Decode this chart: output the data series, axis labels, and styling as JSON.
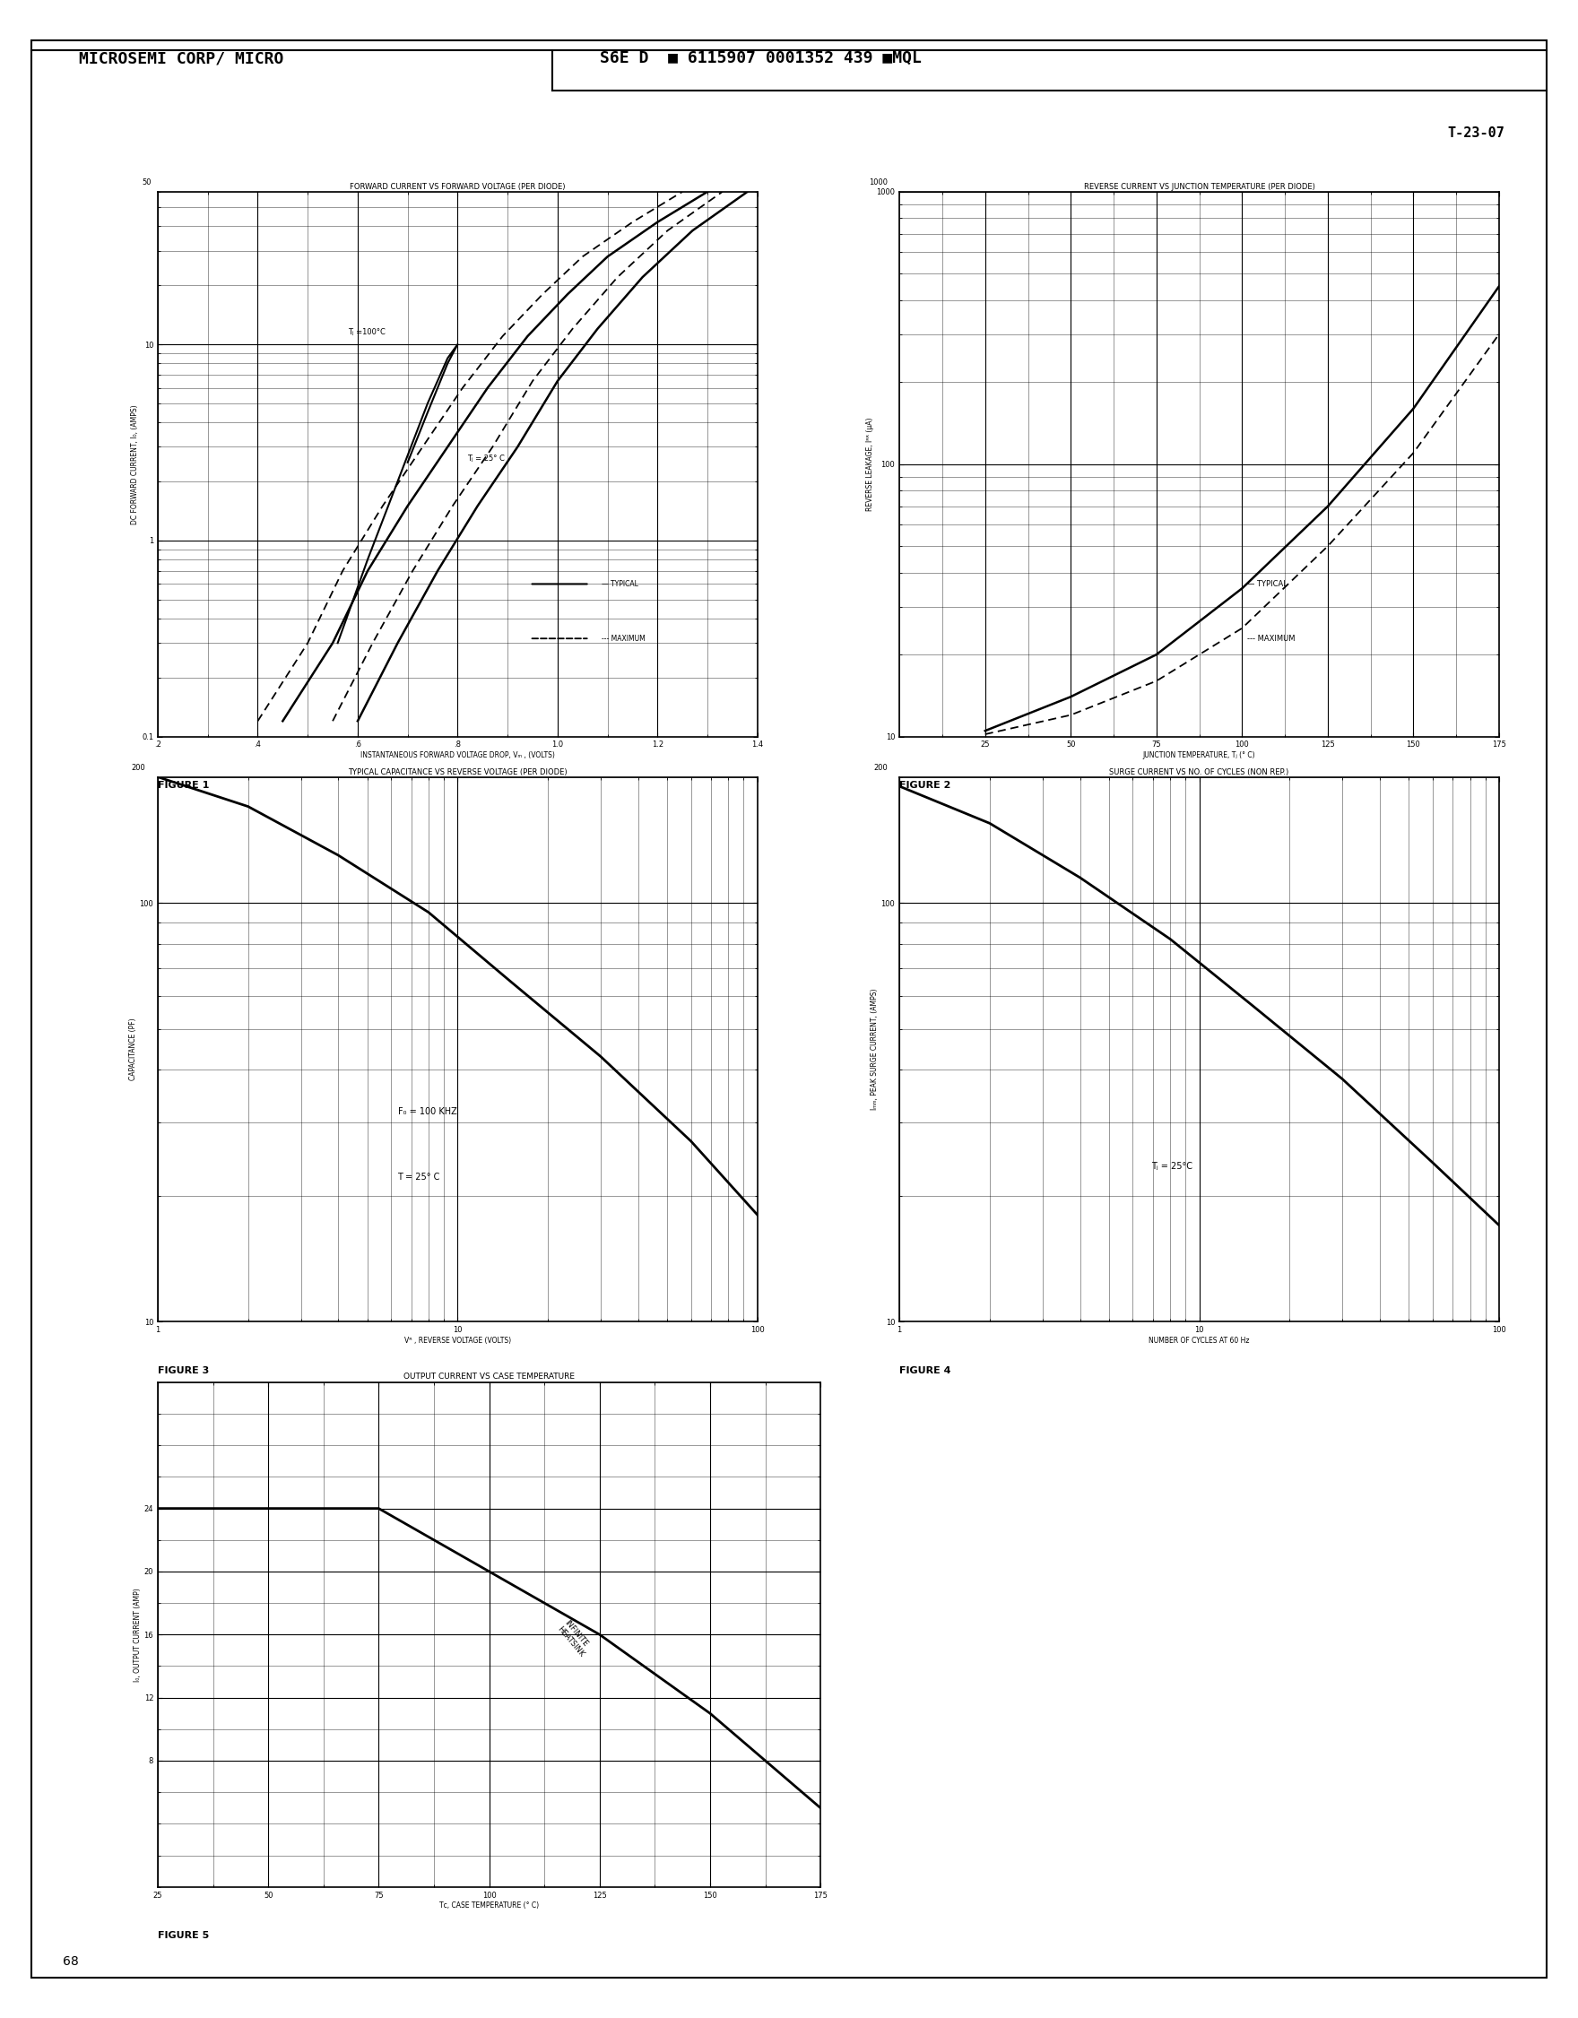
{
  "page_bg": "#ffffff",
  "header_left": "MICROSEMI CORP/ MICRO",
  "header_right": "S6E D  ■ 6115907 0001352 439 ■MQL",
  "corner_label": "T-23-07",
  "page_number": "68",
  "fig1": {
    "title": "FORWARD CURRENT VS FORWARD VOLTAGE (PER DIODE)",
    "xlabel": "INSTANTANEOUS FORWARD VOLTAGE DROP, Vₘ , (VOLTS)",
    "ylabel": "DC FORWARD CURRENT, I₀, (AMPS)",
    "xlim": [
      0.2,
      1.4
    ],
    "ylim_log": [
      0.1,
      60
    ],
    "xtick_vals": [
      0.2,
      0.4,
      0.6,
      0.8,
      1.0,
      1.2,
      1.4
    ],
    "xtick_labs": [
      ".2",
      ".4",
      ".6",
      ".8",
      "1.0",
      "1.2",
      "1.4"
    ],
    "ytick_vals": [
      0.1,
      1,
      10
    ],
    "ytick_labs": [
      "0.1",
      "1",
      "10"
    ],
    "top_label": "50",
    "label_100": "Tⱼ =100°C",
    "label_25": "Tⱼ = 25° C",
    "typical_100_x": [
      0.45,
      0.55,
      0.62,
      0.7,
      0.78,
      0.86,
      0.94,
      1.02,
      1.1,
      1.2,
      1.3
    ],
    "typical_100_y": [
      0.12,
      0.3,
      0.7,
      1.5,
      3.0,
      6.0,
      11.0,
      18.0,
      28.0,
      42.0,
      60.0
    ],
    "typical_25_x": [
      0.6,
      0.68,
      0.76,
      0.84,
      0.92,
      1.0,
      1.08,
      1.17,
      1.27,
      1.38
    ],
    "typical_25_y": [
      0.12,
      0.3,
      0.7,
      1.5,
      3.0,
      6.5,
      12.0,
      22.0,
      38.0,
      60.0
    ],
    "max_100_x": [
      0.4,
      0.5,
      0.57,
      0.65,
      0.73,
      0.81,
      0.89,
      0.97,
      1.05,
      1.15,
      1.25
    ],
    "max_100_y": [
      0.12,
      0.3,
      0.7,
      1.5,
      3.0,
      6.0,
      11.0,
      18.0,
      28.0,
      42.0,
      60.0
    ],
    "max_25_x": [
      0.55,
      0.63,
      0.71,
      0.79,
      0.87,
      0.95,
      1.03,
      1.12,
      1.22,
      1.33
    ],
    "max_25_y": [
      0.12,
      0.3,
      0.7,
      1.5,
      3.0,
      6.5,
      12.0,
      22.0,
      38.0,
      60.0
    ],
    "hump_x": [
      0.56,
      0.62,
      0.68,
      0.74,
      0.78,
      0.8,
      0.78,
      0.74,
      0.7
    ],
    "hump_y": [
      0.3,
      0.8,
      2.0,
      5.0,
      8.5,
      10.0,
      8.0,
      4.5,
      2.5
    ]
  },
  "fig2": {
    "title": "REVERSE CURRENT VS JUNCTION TEMPERATURE (PER DIODE)",
    "xlabel": "JUNCTION TEMPERATURE, Tⱼ (° C)",
    "ylabel": "REVERSE LEAKAGE, Iᴿᴿ (μA)",
    "xlim": [
      0,
      175
    ],
    "ylim_log": [
      10,
      1000
    ],
    "xtick_vals": [
      25,
      50,
      75,
      100,
      125,
      150,
      175
    ],
    "xtick_labs": [
      "25",
      "50",
      "75",
      "100",
      "125",
      "150",
      "175"
    ],
    "ytick_vals": [
      10,
      100,
      1000
    ],
    "ytick_labs": [
      "10",
      "100",
      "1000"
    ],
    "typical_x": [
      25,
      50,
      75,
      100,
      125,
      150,
      175
    ],
    "typical_y": [
      10.5,
      14,
      20,
      35,
      70,
      160,
      450
    ],
    "max_x": [
      25,
      50,
      75,
      100,
      125,
      150,
      175
    ],
    "max_y": [
      10.2,
      12,
      16,
      25,
      50,
      110,
      300
    ]
  },
  "fig3": {
    "title": "TYPICAL CAPACITANCE VS REVERSE VOLTAGE (PER DIODE)",
    "xlabel": "Vᴿ , REVERSE VOLTAGE (VOLTS)",
    "ylabel": "CAPACITANCE (PF)",
    "xlim_log": [
      1,
      100
    ],
    "ylim_log": [
      10,
      200
    ],
    "annotation1": "F₀ = 100 KHZ",
    "annotation2": "T = 25° C",
    "data_x": [
      1,
      2,
      4,
      8,
      15,
      30,
      60,
      100
    ],
    "data_y": [
      200,
      170,
      130,
      95,
      65,
      43,
      27,
      18
    ]
  },
  "fig4": {
    "title": "SURGE CURRENT VS NO. OF CYCLES (NON REP.)",
    "xlabel": "NUMBER OF CYCLES AT 60 Hz",
    "ylabel": "Iₘₘ, PEAK SURGE CURRENT, (AMPS)",
    "xlim_log": [
      1,
      100
    ],
    "ylim_log": [
      10,
      200
    ],
    "annotation": "Tⱼ = 25°C",
    "data_x": [
      1,
      2,
      4,
      8,
      15,
      30,
      60,
      100
    ],
    "data_y": [
      190,
      155,
      115,
      82,
      57,
      38,
      24,
      17
    ]
  },
  "fig5": {
    "title": "OUTPUT CURRENT VS CASE TEMPERATURE",
    "xlabel": "Tᴄ, CASE TEMPERATURE (° C)",
    "ylabel": "I₀, OUTPUT CURRENT (AMP)",
    "xlim": [
      25,
      175
    ],
    "ylim": [
      0,
      32
    ],
    "xtick_vals": [
      25,
      50,
      75,
      100,
      125,
      150,
      175
    ],
    "xtick_labs": [
      "25",
      "50",
      "75",
      "100",
      "125",
      "150",
      "175"
    ],
    "ytick_vals": [
      8,
      12,
      16,
      20,
      24
    ],
    "ytick_labs": [
      "8",
      "12",
      "16",
      "20",
      "24"
    ],
    "annotation": "INFINITE\nHEATSINK",
    "data_x": [
      25,
      75,
      100,
      125,
      150,
      175
    ],
    "data_y": [
      24,
      24,
      20,
      16,
      11,
      5
    ]
  }
}
